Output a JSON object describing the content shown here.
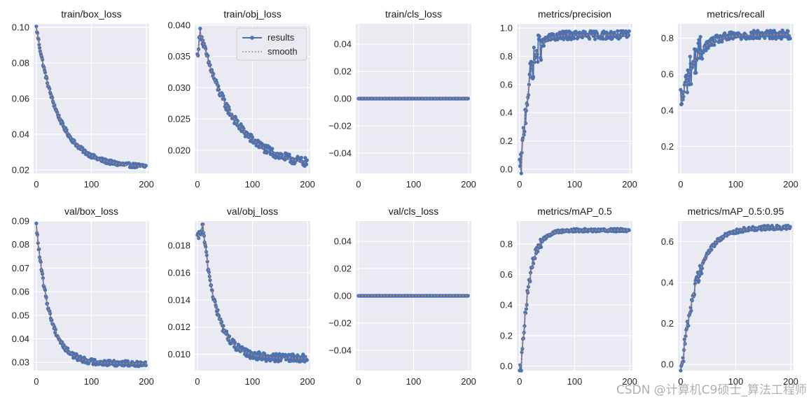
{
  "colors": {
    "axes_bg": "#EAEAF2",
    "grid": "#FFFFFF",
    "results": "#4C72B0",
    "smooth": "#DD8452",
    "text": "#262626"
  },
  "legend": {
    "results_label": "results",
    "smooth_label": "smooth"
  },
  "watermark": "CSDN @计算机C9硕士_算法工程师",
  "chart_data": [
    {
      "id": "train_box_loss",
      "type": "line",
      "title": "train/box_loss",
      "xlim": [
        -5,
        205
      ],
      "ylim": [
        0.018,
        0.102
      ],
      "xticks": [
        0,
        100,
        200
      ],
      "xtick_labels": [
        "0",
        "100",
        "200"
      ],
      "yticks": [
        0.02,
        0.04,
        0.06,
        0.08,
        0.1
      ],
      "ytick_labels": [
        "0.02",
        "0.04",
        "0.06",
        "0.08",
        "0.10"
      ],
      "curve": {
        "kind": "decay",
        "start": 0.1,
        "end": 0.0215,
        "tau": 40,
        "noise": 0.0012
      }
    },
    {
      "id": "train_obj_loss",
      "type": "line",
      "title": "train/obj_loss",
      "xlim": [
        -5,
        205
      ],
      "ylim": [
        0.0163,
        0.0402
      ],
      "xticks": [
        0,
        100,
        200
      ],
      "xtick_labels": [
        "0",
        "100",
        "200"
      ],
      "yticks": [
        0.02,
        0.025,
        0.03,
        0.035,
        0.04
      ],
      "ytick_labels": [
        "0.020",
        "0.025",
        "0.030",
        "0.035",
        "0.040"
      ],
      "legend": true,
      "curve": {
        "kind": "peak_decay",
        "start": 0.035,
        "peak": 0.039,
        "peak_x": 5,
        "end": 0.0172,
        "tau": 60,
        "noise": 0.0007
      }
    },
    {
      "id": "train_cls_loss",
      "type": "line",
      "title": "train/cls_loss",
      "xlim": [
        -5,
        205
      ],
      "ylim": [
        -0.055,
        0.055
      ],
      "xticks": [
        0,
        100,
        200
      ],
      "xtick_labels": [
        "0",
        "100",
        "200"
      ],
      "yticks": [
        -0.04,
        -0.02,
        0,
        0.02,
        0.04
      ],
      "ytick_labels": [
        "−0.04",
        "−0.02",
        "0.00",
        "0.02",
        "0.04"
      ],
      "curve": {
        "kind": "flat",
        "value": 0,
        "noise": 0
      }
    },
    {
      "id": "metrics_precision",
      "type": "line",
      "title": "metrics/precision",
      "xlim": [
        -5,
        205
      ],
      "ylim": [
        -0.03,
        1.03
      ],
      "xticks": [
        0,
        100,
        200
      ],
      "xtick_labels": [
        "0",
        "100",
        "200"
      ],
      "yticks": [
        0,
        0.2,
        0.4,
        0.6,
        0.8,
        1.0
      ],
      "ytick_labels": [
        "0.0",
        "0.2",
        "0.4",
        "0.6",
        "0.8",
        "1.0"
      ],
      "curve": {
        "kind": "rise",
        "start": 0.0,
        "end": 0.95,
        "delay": 3,
        "tau": 14,
        "noise": 0.03
      }
    },
    {
      "id": "metrics_recall",
      "type": "line",
      "title": "metrics/recall",
      "xlim": [
        -5,
        205
      ],
      "ylim": [
        0.05,
        0.88
      ],
      "xticks": [
        0,
        100,
        200
      ],
      "xtick_labels": [
        "0",
        "100",
        "200"
      ],
      "yticks": [
        0.2,
        0.4,
        0.6,
        0.8
      ],
      "ytick_labels": [
        "0.2",
        "0.4",
        "0.6",
        "0.8"
      ],
      "curve": {
        "kind": "rise",
        "start": 0.45,
        "end": 0.82,
        "delay": 2,
        "tau": 25,
        "noise": 0.025
      }
    },
    {
      "id": "val_box_loss",
      "type": "line",
      "title": "val/box_loss",
      "xlim": [
        -5,
        205
      ],
      "ylim": [
        0.0265,
        0.09
      ],
      "xticks": [
        0,
        100,
        200
      ],
      "xtick_labels": [
        "0",
        "100",
        "200"
      ],
      "yticks": [
        0.03,
        0.04,
        0.05,
        0.06,
        0.07,
        0.08,
        0.09
      ],
      "ytick_labels": [
        "0.03",
        "0.04",
        "0.05",
        "0.06",
        "0.07",
        "0.08",
        "0.09"
      ],
      "curve": {
        "kind": "decay",
        "start": 0.088,
        "end": 0.0295,
        "tau": 24,
        "noise": 0.0012
      }
    },
    {
      "id": "val_obj_loss",
      "type": "line",
      "title": "val/obj_loss",
      "xlim": [
        -5,
        205
      ],
      "ylim": [
        0.0088,
        0.0198
      ],
      "xticks": [
        0,
        100,
        200
      ],
      "xtick_labels": [
        "0",
        "100",
        "200"
      ],
      "yticks": [
        0.01,
        0.012,
        0.014,
        0.016,
        0.018
      ],
      "ytick_labels": [
        "0.010",
        "0.012",
        "0.014",
        "0.016",
        "0.018"
      ],
      "curve": {
        "kind": "peak_decay",
        "start": 0.0185,
        "peak": 0.0194,
        "peak_x": 10,
        "end": 0.0097,
        "tau": 25,
        "noise": 0.0003
      }
    },
    {
      "id": "val_cls_loss",
      "type": "line",
      "title": "val/cls_loss",
      "xlim": [
        -5,
        205
      ],
      "ylim": [
        -0.055,
        0.055
      ],
      "xticks": [
        0,
        100,
        200
      ],
      "xtick_labels": [
        "0",
        "100",
        "200"
      ],
      "yticks": [
        -0.04,
        -0.02,
        0,
        0.02,
        0.04
      ],
      "ytick_labels": [
        "−0.04",
        "−0.02",
        "0.00",
        "0.02",
        "0.04"
      ],
      "curve": {
        "kind": "flat",
        "value": 0,
        "noise": 0
      }
    },
    {
      "id": "metrics_map_05",
      "type": "line",
      "title": "metrics/mAP_0.5",
      "xlim": [
        -5,
        205
      ],
      "ylim": [
        -0.03,
        0.95
      ],
      "xticks": [
        0,
        100,
        200
      ],
      "xtick_labels": [
        "0",
        "100",
        "200"
      ],
      "yticks": [
        0,
        0.2,
        0.4,
        0.6,
        0.8
      ],
      "ytick_labels": [
        "0.0",
        "0.2",
        "0.4",
        "0.6",
        "0.8"
      ],
      "curve": {
        "kind": "rise",
        "start": 0.0,
        "end": 0.89,
        "delay": 3,
        "tau": 15,
        "noise": 0.01
      }
    },
    {
      "id": "metrics_map_05_095",
      "type": "line",
      "title": "metrics/mAP_0.5:0.95",
      "xlim": [
        -5,
        205
      ],
      "ylim": [
        -0.03,
        0.7
      ],
      "xticks": [
        0,
        100,
        200
      ],
      "xtick_labels": [
        "0",
        "100",
        "200"
      ],
      "yticks": [
        0,
        0.2,
        0.4,
        0.6
      ],
      "ytick_labels": [
        "0.0",
        "0.2",
        "0.4",
        "0.6"
      ],
      "curve": {
        "kind": "rise",
        "start": 0.0,
        "end": 0.67,
        "delay": 3,
        "tau": 28,
        "noise": 0.01
      }
    }
  ]
}
